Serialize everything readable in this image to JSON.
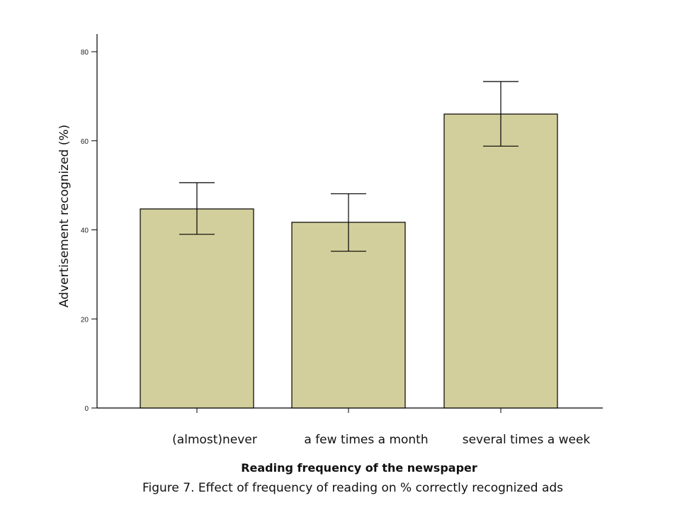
{
  "chart_data": {
    "type": "bar",
    "categories": [
      "(almost)never",
      "a few times a month",
      "several times a week"
    ],
    "values": [
      44.7,
      41.7,
      66.0
    ],
    "error_bars": {
      "upper": [
        50.6,
        48.1,
        73.3
      ],
      "lower": [
        39.0,
        35.2,
        58.8
      ]
    },
    "ylabel": "Advertisement recognized (%)",
    "xlabel": "Reading frequency of the newspaper",
    "ylim": [
      0,
      80
    ],
    "yticks": [
      0,
      20,
      40,
      60,
      80
    ],
    "ytick_labels": [
      "0",
      "20",
      "40",
      "60",
      "80"
    ],
    "bar_color": "#d3cf9c",
    "grid": false
  },
  "caption": "Figure 7. Effect of frequency of reading on % correctly recognized ads"
}
